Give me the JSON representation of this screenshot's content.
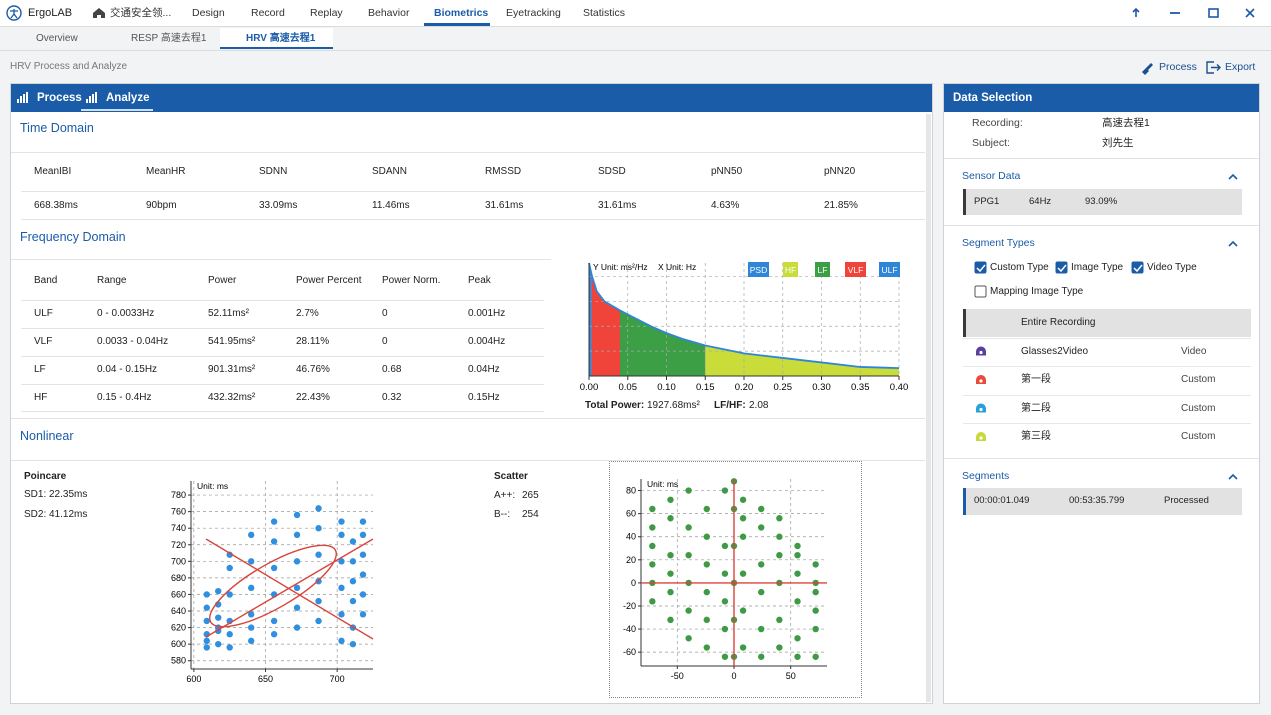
{
  "window": {
    "app_name": "ErgoLAB",
    "nav": [
      "交通安全领...",
      "Design",
      "Record",
      "Replay",
      "Behavior",
      "Biometrics",
      "Eyetracking",
      "Statistics"
    ]
  },
  "doc_tabs": [
    "Overview",
    "RESP 高速去程1",
    "HRV 高速去程1"
  ],
  "breadcrumb": "HRV Process and Analyze",
  "actions": [
    "Process",
    "Export"
  ],
  "panel_tabs": [
    "Process",
    "Analyze"
  ],
  "time_domain": {
    "title": "Time Domain",
    "headers": [
      "MeanIBI",
      "MeanHR",
      "SDNN",
      "SDANN",
      "RMSSD",
      "SDSD",
      "pNN50",
      "pNN20"
    ],
    "values": [
      "668.38ms",
      "90bpm",
      "33.09ms",
      "11.46ms",
      "31.61ms",
      "31.61ms",
      "4.63%",
      "21.85%"
    ]
  },
  "frequency_domain": {
    "title": "Frequency Domain",
    "headers": [
      "Band",
      "Range",
      "Power",
      "Power Percent",
      "Power Norm.",
      "Peak"
    ],
    "rows": [
      [
        "ULF",
        "0 - 0.0033Hz",
        "52.11ms²",
        "2.7%",
        "0",
        "0.001Hz"
      ],
      [
        "VLF",
        "0.0033 - 0.04Hz",
        "541.95ms²",
        "28.11%",
        "0",
        "0.004Hz"
      ],
      [
        "LF",
        "0.04 - 0.15Hz",
        "901.31ms²",
        "46.76%",
        "0.68",
        "0.04Hz"
      ],
      [
        "HF",
        "0.15 - 0.4Hz",
        "432.32ms²",
        "22.43%",
        "0.32",
        "0.15Hz"
      ]
    ],
    "chart": {
      "type": "area",
      "unit_labels": [
        "Y Unit: ms²/Hz",
        "X Unit: Hz"
      ],
      "x": [
        0,
        0.004,
        0.01,
        0.02,
        0.03,
        0.04,
        0.06,
        0.08,
        0.1,
        0.12,
        0.15,
        0.2,
        0.25,
        0.3,
        0.35,
        0.4
      ],
      "series": [
        {
          "name": "PSD",
          "color": "#2f86d6",
          "values": [
            100,
            88,
            75,
            66,
            62,
            58,
            51,
            44,
            38,
            33,
            27,
            20,
            16,
            12,
            8,
            7
          ]
        }
      ],
      "bands": [
        {
          "name": "HF",
          "color": "#c9dc3a",
          "from": 0.15,
          "to": 0.4
        },
        {
          "name": "LF",
          "color": "#3c9e45",
          "from": 0.04,
          "to": 0.15
        },
        {
          "name": "VLF",
          "color": "#f0443a",
          "from": 0.0033,
          "to": 0.04
        },
        {
          "name": "ULF",
          "color": "#2f86d6",
          "from": 0,
          "to": 0.0033
        }
      ],
      "xlim": [
        0,
        0.4
      ],
      "ylim": [
        0,
        100
      ],
      "xticks": [
        {
          "value": 0,
          "label": "0.00"
        },
        0.05,
        {
          "value": 0.1,
          "label": "0.10"
        },
        0.15,
        {
          "value": 0.2,
          "label": "0.20"
        },
        0.25,
        {
          "value": 0.3,
          "label": "0.30"
        },
        0.35,
        {
          "value": 0.4,
          "label": "0.40"
        }
      ],
      "grid": true
    },
    "total_power_label": "Total Power:",
    "total_power": "1927.68ms²",
    "lf_hf_label": "LF/HF:",
    "lf_hf": "2.08"
  },
  "nonlinear": {
    "title": "Nonlinear",
    "poincare": {
      "title": "Poincare",
      "stats": [
        [
          "SD1:",
          "22.35ms"
        ],
        [
          "SD2:",
          "41.12ms"
        ]
      ],
      "chart": {
        "type": "scatter",
        "unit_label": "Unit: ms",
        "color": "#2f8fe0",
        "x": [
          609,
          609,
          609,
          609,
          609,
          609,
          617,
          617,
          617,
          617,
          617,
          617,
          625,
          625,
          625,
          625,
          625,
          625,
          640,
          640,
          640,
          640,
          640,
          640,
          656,
          656,
          656,
          656,
          656,
          656,
          672,
          672,
          672,
          672,
          672,
          672,
          687,
          687,
          687,
          687,
          687,
          687,
          703,
          703,
          703,
          703,
          703,
          703,
          711,
          711,
          711,
          711,
          711,
          711,
          718,
          718,
          718,
          718,
          718,
          718
        ],
        "values": [
          596,
          604,
          612,
          628,
          644,
          660,
          600,
          616,
          632,
          648,
          664,
          620,
          596,
          612,
          628,
          660,
          692,
          708,
          604,
          620,
          636,
          668,
          700,
          732,
          612,
          628,
          660,
          692,
          724,
          748,
          620,
          644,
          668,
          700,
          732,
          756,
          628,
          652,
          676,
          708,
          740,
          764,
          604,
          636,
          668,
          700,
          732,
          748,
          620,
          652,
          676,
          700,
          724,
          600,
          636,
          660,
          684,
          708,
          732,
          748
        ],
        "xlim": [
          598,
          725
        ],
        "ylim": [
          570,
          797
        ],
        "xticks": [
          600,
          650,
          700
        ],
        "yticks": [
          580,
          600,
          620,
          640,
          660,
          680,
          700,
          720,
          740,
          760,
          780
        ],
        "grid": true
      }
    },
    "scatter": {
      "title": "Scatter",
      "stats": [
        [
          "A++:",
          "265"
        ],
        [
          "B--:",
          "254"
        ]
      ],
      "chart": {
        "type": "scatter",
        "unit_label": "Unit: ms",
        "color": "#3f9a46",
        "x": [
          -72,
          -72,
          -72,
          -72,
          -72,
          -72,
          -56,
          -56,
          -56,
          -56,
          -56,
          -56,
          -40,
          -40,
          -40,
          -40,
          -40,
          -40,
          -24,
          -24,
          -24,
          -24,
          -24,
          -24,
          -8,
          -8,
          -8,
          -8,
          -8,
          -8,
          0,
          0,
          0,
          0,
          0,
          0,
          8,
          8,
          8,
          8,
          8,
          8,
          24,
          24,
          24,
          24,
          24,
          24,
          40,
          40,
          40,
          40,
          40,
          40,
          56,
          56,
          56,
          56,
          56,
          56,
          72,
          72,
          72,
          72,
          72,
          72
        ],
        "values": [
          -16,
          0,
          16,
          32,
          48,
          64,
          -32,
          -8,
          8,
          24,
          56,
          72,
          -48,
          -24,
          0,
          24,
          48,
          80,
          -56,
          -32,
          -8,
          16,
          40,
          64,
          -64,
          -40,
          -16,
          8,
          32,
          80,
          -64,
          -32,
          0,
          32,
          64,
          88,
          -56,
          -24,
          8,
          40,
          56,
          72,
          -64,
          -40,
          -8,
          16,
          48,
          64,
          -56,
          -32,
          0,
          24,
          40,
          56,
          -64,
          -48,
          -16,
          8,
          24,
          32,
          -64,
          -40,
          -24,
          -8,
          0,
          16
        ],
        "xlim": [
          -82,
          82
        ],
        "ylim": [
          -72,
          90
        ],
        "xticks": [
          -50,
          0,
          50
        ],
        "yticks": [
          -60,
          -40,
          -20,
          0,
          20,
          40,
          60,
          80
        ],
        "grid": true
      }
    }
  },
  "data_selection": {
    "title": "Data Selection",
    "info": [
      [
        "Recording:",
        "高速去程1"
      ],
      [
        "Subject:",
        "刘先生"
      ]
    ],
    "sensor_data": {
      "title": "Sensor Data",
      "row": [
        "PPG1",
        "64Hz",
        "93.09%"
      ]
    },
    "segment_types": {
      "title": "Segment Types",
      "options": [
        {
          "label": "Custom Type",
          "checked": true
        },
        {
          "label": "Image Type",
          "checked": true
        },
        {
          "label": "Video Type",
          "checked": true
        },
        {
          "label": "Mapping Image Type",
          "checked": false
        }
      ],
      "items": [
        {
          "name": "Entire Recording",
          "type": null,
          "icon_color": "#2aa0d8"
        },
        {
          "name": "Glasses2Video",
          "type": "Video",
          "icon_color": "#5a3ea0"
        },
        {
          "name": "第一段",
          "type": "Custom",
          "icon_color": "#e84a3c"
        },
        {
          "name": "第二段",
          "type": "Custom",
          "icon_color": "#2aa0d8"
        },
        {
          "name": "第三段",
          "type": "Custom",
          "icon_color": "#c8d83c"
        }
      ]
    },
    "segments": {
      "title": "Segments",
      "row": [
        "00:00:01.049",
        "00:53:35.799",
        "Processed"
      ]
    }
  }
}
